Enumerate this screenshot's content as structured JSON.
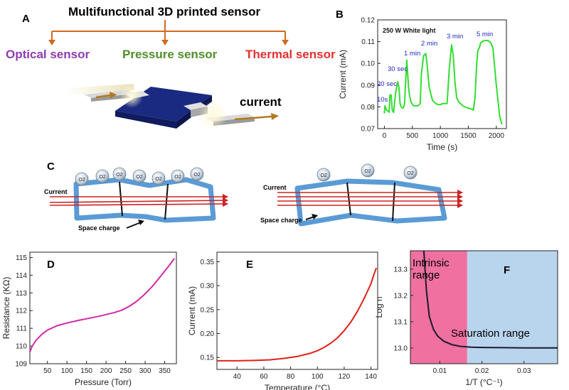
{
  "panelA": {
    "letter": "A",
    "title": "Multifunctional 3D printed sensor",
    "labels": [
      {
        "text": "Optical sensor",
        "color": "#8e3cb4"
      },
      {
        "text": "Pressure sensor",
        "color": "#4f8f2a"
      },
      {
        "text": "Thermal sensor",
        "color": "#e53030"
      }
    ],
    "current_label": "current"
  },
  "panelB": {
    "letter": "B",
    "annotation": "250 W White light",
    "pulse_labels": [
      "10s",
      "20 sec",
      "30 sec",
      "1 min",
      "2 min",
      "3 min",
      "5 min"
    ]
  },
  "panelC": {
    "letter": "C",
    "current_label": "Current",
    "space_charge_label": "Space charge",
    "oxygen_label": "O2"
  },
  "panelD": {
    "letter": "D"
  },
  "panelE": {
    "letter": "E"
  },
  "panelF": {
    "letter": "F",
    "intrinsic_label": [
      "Intrinsic",
      "range"
    ],
    "saturation_label": "Saturation range"
  },
  "chart_data": [
    {
      "id": "B",
      "type": "line",
      "xlabel": "Time (s)",
      "ylabel": "Current (mA)",
      "xlim": [
        -120,
        2180
      ],
      "ylim": [
        0.07,
        0.12
      ],
      "xticks": [
        0,
        500,
        1000,
        1500,
        2000
      ],
      "yticks": [
        0.07,
        0.08,
        0.09,
        0.1,
        0.11,
        0.12
      ],
      "color": "#33dd33",
      "x": [
        0,
        10,
        40,
        70,
        85,
        100,
        120,
        140,
        150,
        165,
        200,
        240,
        260,
        280,
        300,
        320,
        340,
        360,
        400,
        430,
        450,
        480,
        520,
        560,
        600,
        640,
        660,
        700,
        740,
        760,
        800,
        860,
        920,
        960,
        1000,
        1040,
        1080,
        1120,
        1160,
        1200,
        1230,
        1260,
        1290,
        1320,
        1400,
        1480,
        1560,
        1590,
        1620,
        1650,
        1670,
        1700,
        1720,
        1780,
        1850,
        1900,
        1940,
        2000,
        2060,
        2100
      ],
      "y": [
        0.077,
        0.0805,
        0.0785,
        0.078,
        0.0775,
        0.0855,
        0.0855,
        0.0785,
        0.078,
        0.0775,
        0.0865,
        0.0915,
        0.089,
        0.0815,
        0.08,
        0.0795,
        0.0795,
        0.0815,
        0.1015,
        0.0895,
        0.085,
        0.082,
        0.0805,
        0.0805,
        0.0805,
        0.0815,
        0.095,
        0.1035,
        0.1045,
        0.1,
        0.089,
        0.083,
        0.0815,
        0.081,
        0.081,
        0.0815,
        0.0815,
        0.0815,
        0.0975,
        0.1085,
        0.104,
        0.0915,
        0.0845,
        0.0825,
        0.0805,
        0.0795,
        0.079,
        0.0785,
        0.0845,
        0.1,
        0.106,
        0.1075,
        0.1095,
        0.1105,
        0.1105,
        0.1095,
        0.107,
        0.09,
        0.0755,
        0.072
      ]
    },
    {
      "id": "D",
      "type": "line",
      "xlabel": "Pressure (Torr)",
      "ylabel": "Resistance (KΩ)",
      "xlim": [
        5,
        380
      ],
      "ylim": [
        109,
        115.3
      ],
      "xticks": [
        50,
        100,
        150,
        200,
        250,
        300,
        350
      ],
      "yticks": [
        109,
        110,
        111,
        112,
        113,
        114,
        115
      ],
      "color": "#d02aa6",
      "x": [
        5,
        10,
        20,
        35,
        50,
        75,
        100,
        130,
        160,
        190,
        220,
        240,
        260,
        280,
        300,
        320,
        340,
        360,
        375
      ],
      "y": [
        109.65,
        109.95,
        110.3,
        110.65,
        110.9,
        111.15,
        111.3,
        111.45,
        111.58,
        111.72,
        111.88,
        112.02,
        112.25,
        112.55,
        112.95,
        113.4,
        113.95,
        114.5,
        114.95
      ]
    },
    {
      "id": "E",
      "type": "line",
      "xlabel": "Temperature (°C)",
      "ylabel": "Current (mA)",
      "xlim": [
        25,
        145
      ],
      "ylim": [
        0.125,
        0.37
      ],
      "xticks": [
        40,
        60,
        80,
        100,
        120,
        140
      ],
      "yticks": [
        0.15,
        0.2,
        0.25,
        0.3,
        0.35
      ],
      "color": "#e0201a",
      "x": [
        25,
        40,
        55,
        65,
        75,
        85,
        95,
        100,
        105,
        110,
        115,
        120,
        125,
        130,
        135,
        138,
        140,
        142,
        144
      ],
      "y": [
        0.143,
        0.143,
        0.144,
        0.145,
        0.148,
        0.152,
        0.159,
        0.164,
        0.171,
        0.18,
        0.191,
        0.206,
        0.224,
        0.247,
        0.274,
        0.292,
        0.304,
        0.322,
        0.337
      ]
    },
    {
      "id": "F",
      "type": "line",
      "xlabel": "1/T (°C⁻¹)",
      "ylabel": "Log n",
      "xlim": [
        0.003,
        0.038
      ],
      "ylim": [
        12.94,
        13.37
      ],
      "xticks": [
        0.01,
        0.02,
        0.03
      ],
      "yticks": [
        13.0,
        13.1,
        13.2,
        13.3
      ],
      "color": "#1a1a2e",
      "intrinsic_range_x": [
        0.003,
        0.0165
      ],
      "saturation_range_x": [
        0.0165,
        0.038
      ],
      "x": [
        0.0062,
        0.0068,
        0.0075,
        0.0085,
        0.0095,
        0.011,
        0.013,
        0.015,
        0.0175,
        0.02,
        0.025,
        0.03,
        0.038
      ],
      "y": [
        13.37,
        13.22,
        13.12,
        13.07,
        13.045,
        13.025,
        13.012,
        13.006,
        13.003,
        13.002,
        13.001,
        13.0,
        13.0
      ]
    }
  ]
}
